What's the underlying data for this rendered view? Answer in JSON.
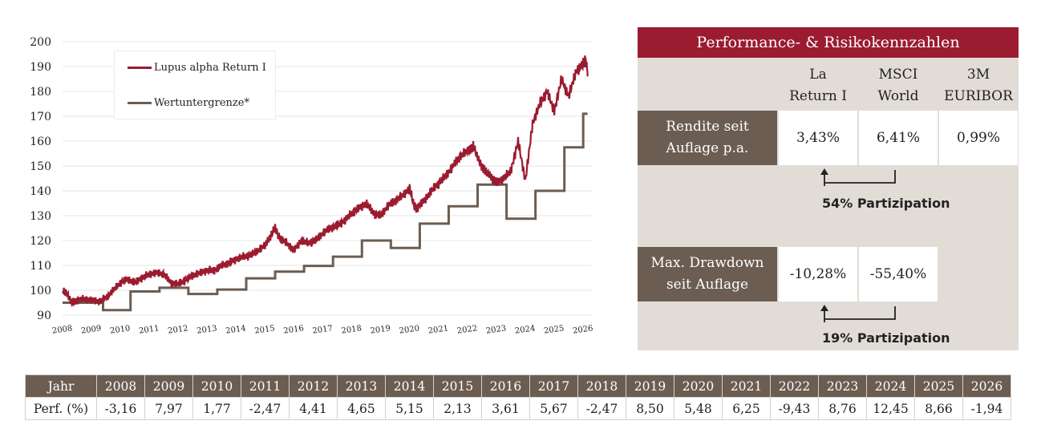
{
  "chart_data": {
    "type": "line",
    "ylim": [
      90,
      200
    ],
    "yticks": [
      90,
      100,
      110,
      120,
      130,
      140,
      150,
      160,
      170,
      180,
      190,
      200
    ],
    "xticks": [
      "2008",
      "2009",
      "2010",
      "2011",
      "2012",
      "2013",
      "2014",
      "2015",
      "2016",
      "2017",
      "2018",
      "2019",
      "2020",
      "2021",
      "2022",
      "2023",
      "2024",
      "2025",
      "2026"
    ],
    "series": [
      {
        "name": "Lupus alpha Return I",
        "color": "#9b1b30",
        "x": [
          2008.0,
          2008.15,
          2008.3,
          2008.5,
          2008.75,
          2009.0,
          2009.25,
          2009.5,
          2009.75,
          2010.0,
          2010.25,
          2010.5,
          2010.75,
          2011.0,
          2011.25,
          2011.5,
          2011.75,
          2012.0,
          2012.25,
          2012.5,
          2012.75,
          2013.0,
          2013.25,
          2013.5,
          2013.75,
          2014.0,
          2014.25,
          2014.5,
          2014.75,
          2015.0,
          2015.2,
          2015.35,
          2015.5,
          2015.75,
          2016.0,
          2016.25,
          2016.5,
          2016.75,
          2017.0,
          2017.25,
          2017.5,
          2017.75,
          2018.0,
          2018.25,
          2018.5,
          2018.75,
          2019.0,
          2019.25,
          2019.5,
          2019.75,
          2020.0,
          2020.15,
          2020.25,
          2020.5,
          2020.75,
          2021.0,
          2021.25,
          2021.5,
          2021.75,
          2022.0,
          2022.2,
          2022.4,
          2022.6,
          2022.8,
          2023.0,
          2023.25,
          2023.5,
          2023.75,
          2024.0,
          2024.25,
          2024.5,
          2024.75,
          2025.0,
          2025.25,
          2025.5,
          2025.75,
          2026.0,
          2026.1,
          2026.15
        ],
        "values": [
          100,
          99,
          95,
          96,
          96.5,
          96,
          95.5,
          97,
          100,
          103,
          104.5,
          103,
          105,
          106.5,
          107,
          106.5,
          103,
          102.5,
          104,
          106,
          107,
          108,
          108,
          110,
          111,
          112.5,
          113.5,
          114,
          116,
          118,
          122,
          125,
          121,
          119,
          116,
          120,
          119,
          120,
          123,
          125,
          126,
          128,
          131,
          133,
          135,
          131,
          130,
          134,
          136,
          138,
          141,
          134,
          133,
          136,
          140,
          143,
          146,
          150,
          154,
          156,
          158,
          152,
          148,
          146,
          143,
          145,
          148,
          160,
          144,
          167,
          175,
          180,
          172,
          185,
          178,
          188,
          191,
          193,
          186
        ]
      },
      {
        "name": "Wertuntergrenze*",
        "color": "#6b5d52",
        "steps": [
          [
            2008.0,
            95
          ],
          [
            2009.4,
            92
          ],
          [
            2010.35,
            99.5
          ],
          [
            2011.35,
            101
          ],
          [
            2012.35,
            98.5
          ],
          [
            2013.35,
            100.3
          ],
          [
            2014.35,
            104.8
          ],
          [
            2015.35,
            107.5
          ],
          [
            2016.35,
            109.8
          ],
          [
            2017.35,
            113.5
          ],
          [
            2018.35,
            120
          ],
          [
            2019.35,
            117
          ],
          [
            2020.35,
            126.8
          ],
          [
            2021.35,
            133.8
          ],
          [
            2022.35,
            142.5
          ],
          [
            2023.35,
            128.8
          ],
          [
            2024.35,
            140
          ],
          [
            2025.35,
            157.5
          ],
          [
            2026.0,
            171
          ]
        ],
        "x_end": 2026.15
      }
    ]
  },
  "panel": {
    "title": "Performance- & Risikokennzahlen",
    "col1_l1": "La",
    "col1_l2": "Return I",
    "col2_l1": "MSCI",
    "col2_l2": "World",
    "col3_l1": "3M",
    "col3_l2": "EURIBOR",
    "row1_l1": "Rendite seit",
    "row1_l2": "Auflage p.a.",
    "row1_v1": "3,43%",
    "row1_v2": "6,41%",
    "row1_v3": "0,99%",
    "part1": "54% Partizipation",
    "row2_l1": "Max. Drawdown",
    "row2_l2": "seit Auflage",
    "row2_v1": "-10,28%",
    "row2_v2": "-55,40%",
    "part2": "19% Partizipation"
  },
  "table": {
    "head_label": "Jahr",
    "perf_label": "Perf. (%)",
    "years": [
      "2008",
      "2009",
      "2010",
      "2011",
      "2012",
      "2013",
      "2014",
      "2015",
      "2016",
      "2017",
      "2018",
      "2019",
      "2020",
      "2021",
      "2022",
      "2023",
      "2024",
      "2025",
      "2026"
    ],
    "perf": [
      "-3,16",
      "7,97",
      "1,77",
      "-2,47",
      "4,41",
      "4,65",
      "5,15",
      "2,13",
      "3,61",
      "5,67",
      "-2,47",
      "8,50",
      "5,48",
      "6,25",
      "-9,43",
      "8,76",
      "12,45",
      "8,66",
      "-1,94"
    ]
  },
  "colors": {
    "fund": "#9b1b30",
    "floor": "#6b5d52",
    "panel_bg": "#e2dcd7",
    "header_bg": "#6b5d52"
  }
}
